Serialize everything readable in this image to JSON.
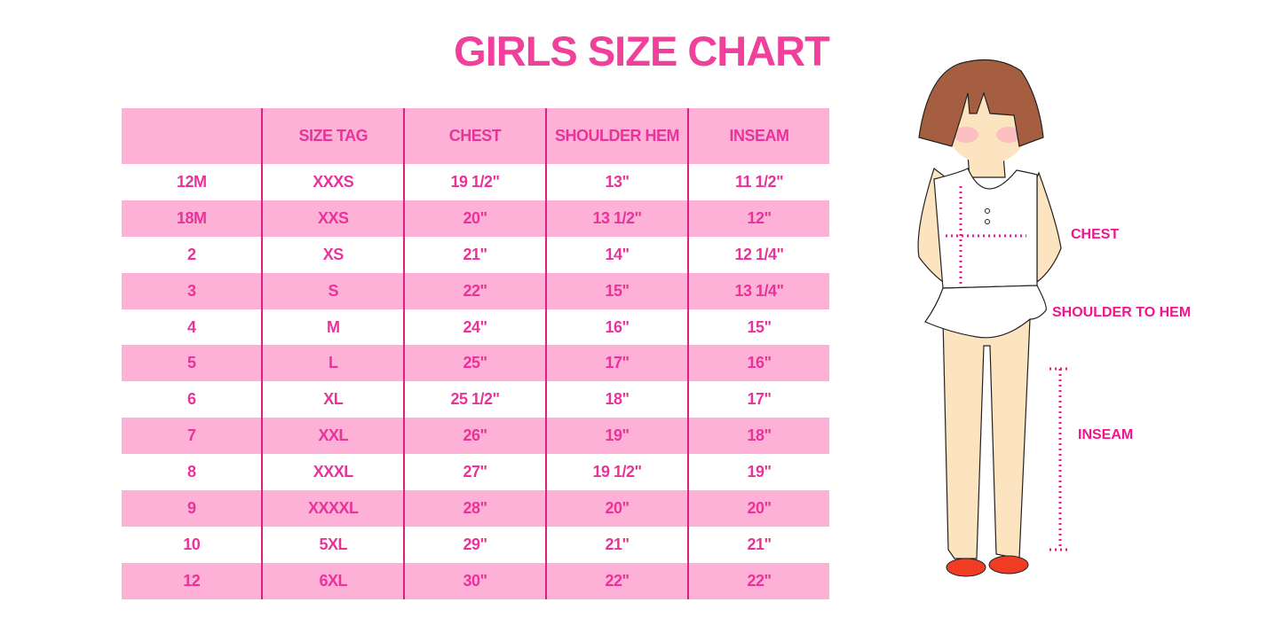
{
  "title": "GIRLS SIZE CHART",
  "table": {
    "headers": [
      "",
      "SIZE TAG",
      "CHEST",
      "SHOULDER HEM",
      "INSEAM"
    ],
    "rows": [
      [
        "12M",
        "XXXS",
        "19 1/2\"",
        "13\"",
        "11 1/2\""
      ],
      [
        "18M",
        "XXS",
        "20\"",
        "13 1/2\"",
        "12\""
      ],
      [
        "2",
        "XS",
        "21\"",
        "14\"",
        "12 1/4\""
      ],
      [
        "3",
        "S",
        "22\"",
        "15\"",
        "13 1/4\""
      ],
      [
        "4",
        "M",
        "24\"",
        "16\"",
        "15\""
      ],
      [
        "5",
        "L",
        "25\"",
        "17\"",
        "16\""
      ],
      [
        "6",
        "XL",
        "25 1/2\"",
        "18\"",
        "17\""
      ],
      [
        "7",
        "XXL",
        "26\"",
        "19\"",
        "18\""
      ],
      [
        "8",
        "XXXL",
        "27\"",
        "19 1/2\"",
        "19\""
      ],
      [
        "9",
        "XXXXL",
        "28\"",
        "20\"",
        "20\""
      ],
      [
        "10",
        "5XL",
        "29\"",
        "21\"",
        "21\""
      ],
      [
        "12",
        "6XL",
        "30\"",
        "22\"",
        "22\""
      ]
    ]
  },
  "figure": {
    "labels": {
      "chest": "CHEST",
      "shoulder": "SHOULDER TO HEM",
      "inseam": "INSEAM"
    }
  },
  "colors": {
    "accent": "#f0409b",
    "row_fill": "#fdb1d6",
    "divider": "#dd1f86"
  }
}
